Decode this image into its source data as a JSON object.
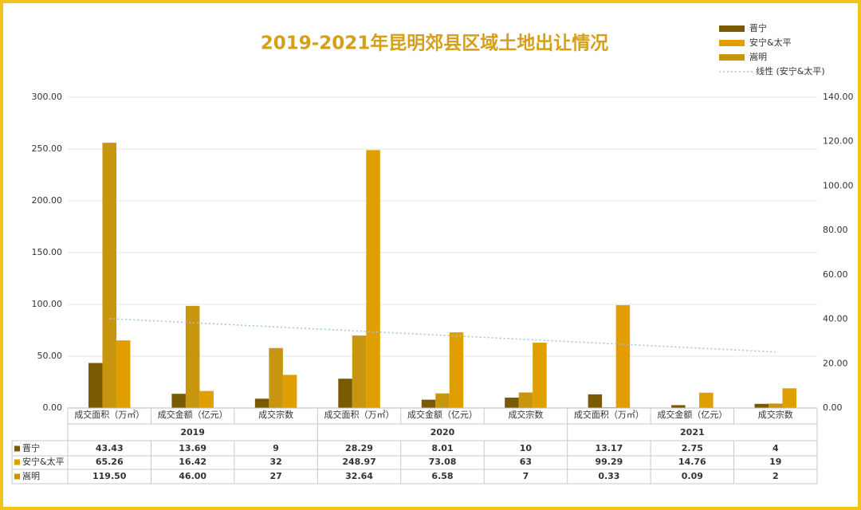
{
  "chart_data": {
    "type": "bar",
    "title": "2019-2021年昆明郊县区域土地出让情况",
    "categories": [
      "成交面积（万㎡）",
      "成交金额（亿元）",
      "成交宗数",
      "成交面积（万㎡）",
      "成交金额（亿元）",
      "成交宗数",
      "成交面积（万㎡）",
      "成交金额（亿元）",
      "成交宗数"
    ],
    "category_groups": [
      "2019",
      "2020",
      "2021"
    ],
    "series": [
      {
        "name": "晋宁",
        "color": "#7a5a00",
        "values": [
          43.43,
          13.69,
          9,
          28.29,
          8.01,
          10,
          13.17,
          2.75,
          4
        ],
        "value_labels": [
          "43.43",
          "13.69",
          "9",
          "28.29",
          "8.01",
          "10",
          "13.17",
          "2.75",
          "4"
        ]
      },
      {
        "name": "安宁&太平",
        "color": "#e09e00",
        "values": [
          65.26,
          16.42,
          32,
          248.97,
          73.08,
          63,
          99.29,
          14.76,
          19
        ],
        "value_labels": [
          "65.26",
          "16.42",
          "32",
          "248.97",
          "73.08",
          "63",
          "99.29",
          "14.76",
          "19"
        ],
        "trendline": {
          "name": "线性 (安宁&太平)",
          "color": "#9dc3e6"
        }
      },
      {
        "name": "嵩明",
        "color": "#c8960e",
        "axis": "y2",
        "values": [
          119.5,
          46,
          27,
          32.64,
          6.58,
          7,
          0.33,
          0.09,
          2
        ],
        "value_labels": [
          "119.50",
          "46.00",
          "27",
          "32.64",
          "6.58",
          "7",
          "0.33",
          "0.09",
          "2"
        ]
      }
    ],
    "ylim": [
      0,
      300
    ],
    "yticks": [
      {
        "value": 0,
        "label": "0.00"
      },
      {
        "value": 50,
        "label": "50.00"
      },
      {
        "value": 100,
        "label": "100.00"
      },
      {
        "value": 150,
        "label": "150.00"
      },
      {
        "value": 200,
        "label": "200.00"
      },
      {
        "value": 250,
        "label": "250.00"
      },
      {
        "value": 300,
        "label": "300.00"
      }
    ],
    "y2lim": [
      0,
      140
    ],
    "y2ticks": [
      {
        "value": 0,
        "label": "0.00"
      },
      {
        "value": 20,
        "label": "20.00"
      },
      {
        "value": 40,
        "label": "40.00"
      },
      {
        "value": 60,
        "label": "60.00"
      },
      {
        "value": 80,
        "label": "80.00"
      },
      {
        "value": 100,
        "label": "100.00"
      },
      {
        "value": 120,
        "label": "120.00"
      },
      {
        "value": 140,
        "label": "140.00"
      }
    ],
    "grid": true
  }
}
